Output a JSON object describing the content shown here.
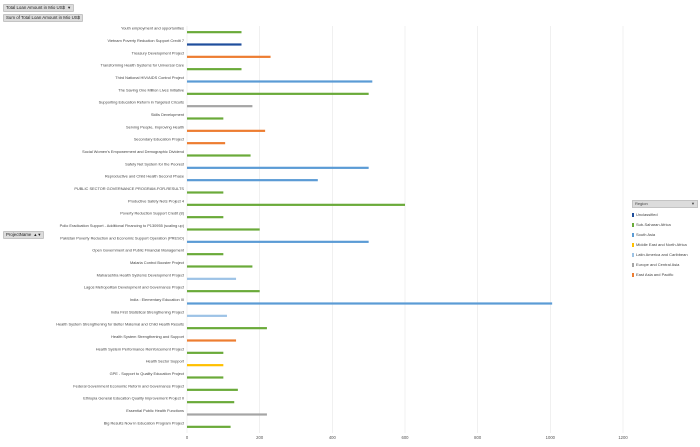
{
  "filter_button": {
    "label": "Total Loan Amount in Mio US$",
    "arrow": "▼"
  },
  "value_field_button": {
    "label": "Sum of Total Loan Amount in Mio US$"
  },
  "axis_field_button": {
    "label": "ProjectName",
    "icons": "▲▼"
  },
  "legend": {
    "title": "Region",
    "arrow": "▼",
    "items": [
      {
        "name": "Unclassified",
        "color": "#1f4e9c"
      },
      {
        "name": "Sub-Saharan Africa",
        "color": "#6aaa3a"
      },
      {
        "name": "South Asia",
        "color": "#5b9bd5"
      },
      {
        "name": "Middle East and North Africa",
        "color": "#ffc000"
      },
      {
        "name": "Latin America and Caribbean",
        "color": "#9dc3e6"
      },
      {
        "name": "Europe and Central Asia",
        "color": "#a5a5a5"
      },
      {
        "name": "East Asia and Pacific",
        "color": "#ed7d31"
      }
    ]
  },
  "chart_data": {
    "type": "bar",
    "orientation": "horizontal",
    "title": "",
    "xlabel": "",
    "ylabel": "ProjectName",
    "xlim": [
      0,
      1200
    ],
    "xticks": [
      0,
      200,
      400,
      600,
      800,
      1000,
      1200
    ],
    "grid": true,
    "legend_position": "right",
    "bars": [
      {
        "category": "Youth employment and opportunities",
        "value": 150,
        "region": "Sub-Saharan Africa"
      },
      {
        "category": "Vietnam Poverty Reduction Support Credit 7",
        "value": 150,
        "region": "Unclassified"
      },
      {
        "category": "Treasury Development Project",
        "value": 230,
        "region": "East Asia and Pacific"
      },
      {
        "category": "Transforming Health Systems for Universal Care",
        "value": 150,
        "region": "Sub-Saharan Africa"
      },
      {
        "category": "Third National HIV/AIDS Control Project",
        "value": 510,
        "region": "South Asia"
      },
      {
        "category": "The Saving One Million Lives Initiative",
        "value": 500,
        "region": "Sub-Saharan Africa"
      },
      {
        "category": "Supporting Education Reform in Targeted Circuits",
        "value": 180,
        "region": "Europe and Central Asia"
      },
      {
        "category": "Skills Development",
        "value": 100,
        "region": "Sub-Saharan Africa"
      },
      {
        "category": "Serving People, Improving Health",
        "value": 215,
        "region": "East Asia and Pacific"
      },
      {
        "category": "Secondary Education Project",
        "value": 105,
        "region": "East Asia and Pacific"
      },
      {
        "category": "Social Women's Empowerment and Demographic Dividend",
        "value": 175,
        "region": "Sub-Saharan Africa"
      },
      {
        "category": "Safety Net System for the Poorest",
        "value": 500,
        "region": "South Asia"
      },
      {
        "category": "Reproductive and Child Health Second Phase",
        "value": 360,
        "region": "South Asia"
      },
      {
        "category": "PUBLIC SECTOR GOVERNANCE PROGRAM-FOR-RESULTS",
        "value": 100,
        "region": "Sub-Saharan Africa"
      },
      {
        "category": "Productive Safety Nets Project 4",
        "value": 600,
        "region": "Sub-Saharan Africa"
      },
      {
        "category": "Poverty Reduction Support Credit (8)",
        "value": 100,
        "region": "Sub-Saharan Africa"
      },
      {
        "category": "Polio Eradication Support - Additional Financing to P130955 (scaling up)",
        "value": 200,
        "region": "Sub-Saharan Africa"
      },
      {
        "category": "Pakistan Poverty Reduction and Economic Support Operation (PRESO)",
        "value": 500,
        "region": "South Asia"
      },
      {
        "category": "Open Government and Public Financial Management",
        "value": 100,
        "region": "Sub-Saharan Africa"
      },
      {
        "category": "Malaria Control Booster Project",
        "value": 180,
        "region": "Sub-Saharan Africa"
      },
      {
        "category": "Maharashtra Health Systems Development Project",
        "value": 135,
        "region": "Latin America and Caribbean"
      },
      {
        "category": "Lagos Metropolitan Development and Governance Project",
        "value": 200,
        "region": "Sub-Saharan Africa"
      },
      {
        "category": "India : Elementary Education III",
        "value": 1005,
        "region": "South Asia"
      },
      {
        "category": "India First Statistical Strengthening Project",
        "value": 110,
        "region": "Latin America and Caribbean"
      },
      {
        "category": "Health System Strengthening for Better Maternal and Child Health Results",
        "value": 220,
        "region": "Sub-Saharan Africa"
      },
      {
        "category": "Health System Strengthening and Support",
        "value": 135,
        "region": "East Asia and Pacific"
      },
      {
        "category": "Health System Performance Reinforcement Project",
        "value": 100,
        "region": "Sub-Saharan Africa"
      },
      {
        "category": "Health Sector Support",
        "value": 100,
        "region": "Middle East and North Africa"
      },
      {
        "category": "GPE - Support to Quality Education Project",
        "value": 100,
        "region": "Sub-Saharan Africa"
      },
      {
        "category": "Federal Government Economic Reform and Governance Project",
        "value": 140,
        "region": "Sub-Saharan Africa"
      },
      {
        "category": "Ethiopia General Education Quality Improvement Project II",
        "value": 130,
        "region": "Sub-Saharan Africa"
      },
      {
        "category": "Essential Public Health Functions",
        "value": 220,
        "region": "Europe and Central Asia"
      },
      {
        "category": "Big Results Now in Education Program Project",
        "value": 120,
        "region": "Sub-Saharan Africa"
      }
    ]
  }
}
